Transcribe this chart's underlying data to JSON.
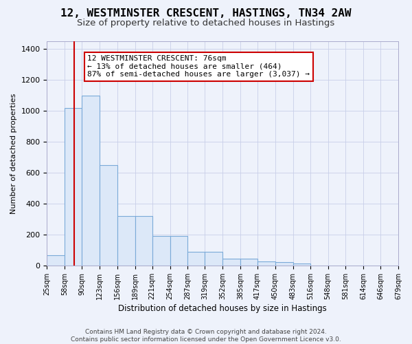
{
  "title": "12, WESTMINSTER CRESCENT, HASTINGS, TN34 2AW",
  "subtitle": "Size of property relative to detached houses in Hastings",
  "xlabel": "Distribution of detached houses by size in Hastings",
  "ylabel": "Number of detached properties",
  "bin_labels": [
    "25sqm",
    "58sqm",
    "90sqm",
    "123sqm",
    "156sqm",
    "189sqm",
    "221sqm",
    "254sqm",
    "287sqm",
    "319sqm",
    "352sqm",
    "385sqm",
    "417sqm",
    "450sqm",
    "483sqm",
    "516sqm",
    "548sqm",
    "581sqm",
    "614sqm",
    "646sqm",
    "679sqm"
  ],
  "bin_edges": [
    25,
    58,
    90,
    123,
    156,
    189,
    221,
    254,
    287,
    319,
    352,
    385,
    417,
    450,
    483,
    516,
    548,
    581,
    614,
    646,
    679
  ],
  "bar_heights": [
    65,
    1020,
    1100,
    650,
    320,
    320,
    190,
    190,
    90,
    90,
    45,
    45,
    25,
    20,
    15,
    0,
    0,
    0,
    0,
    0
  ],
  "bar_color": "#dce8f8",
  "bar_edgecolor": "#7aaad8",
  "red_line_x": 76,
  "red_line_color": "#cc0000",
  "ylim": [
    0,
    1450
  ],
  "yticks": [
    0,
    200,
    400,
    600,
    800,
    1000,
    1200,
    1400
  ],
  "annotation_text": "12 WESTMINSTER CRESCENT: 76sqm\n← 13% of detached houses are smaller (464)\n87% of semi-detached houses are larger (3,037) →",
  "annotation_box_color": "#ffffff",
  "annotation_box_edgecolor": "#cc0000",
  "footer_line1": "Contains HM Land Registry data © Crown copyright and database right 2024.",
  "footer_line2": "Contains public sector information licensed under the Open Government Licence v3.0.",
  "bg_color": "#eef2fb",
  "grid_color": "#c8cfe8",
  "title_fontsize": 11.5,
  "subtitle_fontsize": 9.5,
  "annotation_fontsize": 8,
  "footer_fontsize": 6.5
}
